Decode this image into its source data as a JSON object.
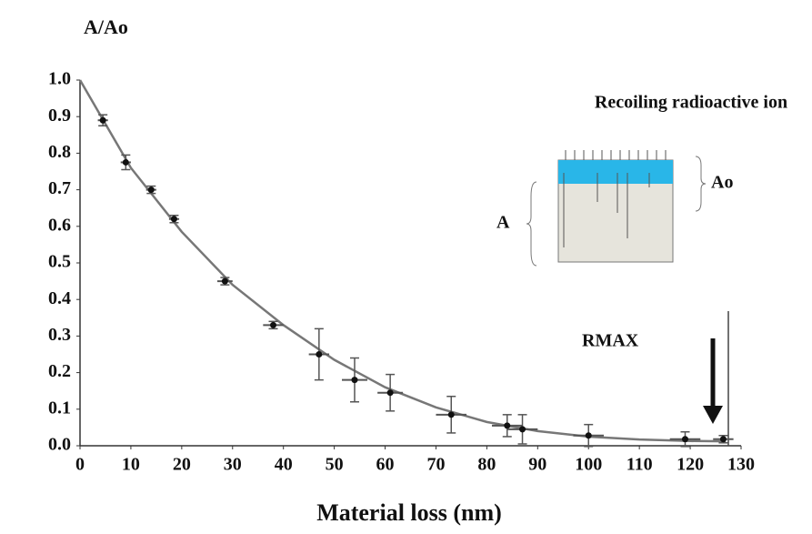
{
  "chart_data": {
    "type": "scatter",
    "ylabel": "A/Ao",
    "xlabel": "Material loss (nm)",
    "x": [
      4.5,
      9,
      14,
      18.5,
      28.5,
      38,
      47,
      54,
      61,
      73,
      84,
      87,
      100,
      119,
      126.5
    ],
    "values": [
      0.89,
      0.775,
      0.7,
      0.62,
      0.45,
      0.33,
      0.25,
      0.18,
      0.145,
      0.085,
      0.055,
      0.045,
      0.028,
      0.018,
      0.018
    ],
    "yerr": [
      0.015,
      0.02,
      0.01,
      0.01,
      0.01,
      0.01,
      0.07,
      0.06,
      0.05,
      0.05,
      0.03,
      0.04,
      0.03,
      0.02,
      0.01
    ],
    "xerr": [
      1,
      1,
      1,
      1,
      1.5,
      2,
      2,
      2.5,
      2.5,
      3,
      3,
      3,
      3,
      3,
      2
    ],
    "color": "#111111",
    "curve": {
      "x": [
        0,
        10,
        20,
        30,
        40,
        50,
        60,
        70,
        80,
        90,
        100,
        110,
        120,
        127
      ],
      "values": [
        1.0,
        0.76,
        0.585,
        0.44,
        0.33,
        0.235,
        0.16,
        0.105,
        0.065,
        0.04,
        0.025,
        0.017,
        0.013,
        0.012
      ],
      "color": "#777777"
    },
    "xlim": [
      0,
      130
    ],
    "ylim": [
      0,
      1.0
    ],
    "xticks": [
      0,
      10,
      20,
      30,
      40,
      50,
      60,
      70,
      80,
      90,
      100,
      110,
      120,
      130
    ],
    "yticks": [
      {
        "value": 0,
        "label": "0.0"
      },
      0.1,
      0.2,
      0.3,
      0.4,
      0.5,
      0.6,
      0.7,
      0.8,
      0.9,
      {
        "value": 1,
        "label": "1.0"
      }
    ],
    "annotations": {
      "inset_title": "Recoiling radioactive ion",
      "inset_a": "A",
      "inset_ao": "Ao",
      "rmax": "RMAX"
    }
  }
}
